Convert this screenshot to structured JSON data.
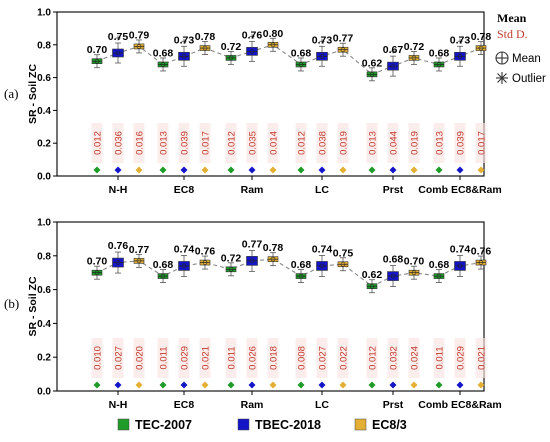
{
  "figure": {
    "legend": [
      {
        "label": "TEC-2007",
        "color": "#1f9b2a"
      },
      {
        "label": "TBEC-2018",
        "color": "#1515c8"
      },
      {
        "label": "EC8/3",
        "color": "#e3b035"
      }
    ],
    "right_legend": {
      "mean_title": "Mean",
      "std_title": "Std D.",
      "mean_symbol_label": "Mean",
      "outlier_symbol_label": "Outlier"
    }
  },
  "chart_data": [
    {
      "type": "box",
      "panel_label": "(a)",
      "ylabel": "SR - Soil ZC",
      "ylim": [
        0,
        1.0
      ],
      "yticks": [
        "0.0",
        "0.2",
        "0.4",
        "0.6",
        "0.8",
        "1.0"
      ],
      "categories": [
        "N-H",
        "EC8",
        "Ram",
        "LC",
        "Prst",
        "Comb EC8&Ram"
      ],
      "series": [
        {
          "name": "TEC-2007",
          "means": [
            0.7,
            0.68,
            0.72,
            0.68,
            0.62,
            0.68
          ],
          "mean_labels": [
            "0.70",
            "0.68",
            "0.72",
            "0.68",
            "0.62",
            "0.68"
          ],
          "std_labels": [
            "0.012",
            "0.013",
            "0.012",
            "0.012",
            "0.013",
            "0.013"
          ]
        },
        {
          "name": "TBEC-2018",
          "means": [
            0.75,
            0.73,
            0.76,
            0.73,
            0.67,
            0.73
          ],
          "mean_labels": [
            "0.75",
            "0.73",
            "0.76",
            "0.73",
            "0.67",
            "0.73"
          ],
          "std_labels": [
            "0.036",
            "0.039",
            "0.035",
            "0.038",
            "0.044",
            "0.039"
          ]
        },
        {
          "name": "EC8/3",
          "means": [
            0.79,
            0.78,
            0.8,
            0.77,
            0.72,
            0.78
          ],
          "mean_labels": [
            "0.79",
            "0.78",
            "0.80",
            "0.77",
            "0.72",
            "0.78"
          ],
          "std_labels": [
            "0.016",
            "0.017",
            "0.014",
            "0.019",
            "0.019",
            "0.017"
          ]
        }
      ]
    },
    {
      "type": "box",
      "panel_label": "(b)",
      "ylabel": "SR - Soil ZC",
      "ylim": [
        0,
        1.0
      ],
      "yticks": [
        "0.0",
        "0.2",
        "0.4",
        "0.6",
        "0.8",
        "1.0"
      ],
      "categories": [
        "N-H",
        "EC8",
        "Ram",
        "LC",
        "Prst",
        "Comb EC8&Ram"
      ],
      "series": [
        {
          "name": "TEC-2007",
          "means": [
            0.7,
            0.68,
            0.72,
            0.68,
            0.62,
            0.68
          ],
          "mean_labels": [
            "0.70",
            "0.68",
            "0.72",
            "0.68",
            "0.62",
            "0.68"
          ],
          "std_labels": [
            "0.010",
            "0.011",
            "0.011",
            "0.008",
            "0.012",
            "0.011"
          ]
        },
        {
          "name": "TBEC-2018",
          "means": [
            0.76,
            0.74,
            0.77,
            0.74,
            0.68,
            0.74
          ],
          "mean_labels": [
            "0.76",
            "0.74",
            "0.77",
            "0.74",
            "0.68",
            "0.74"
          ],
          "std_labels": [
            "0.027",
            "0.029",
            "0.026",
            "0.027",
            "0.032",
            "0.029"
          ]
        },
        {
          "name": "EC8/3",
          "means": [
            0.77,
            0.76,
            0.78,
            0.75,
            0.7,
            0.76
          ],
          "mean_labels": [
            "0.77",
            "0.76",
            "0.78",
            "0.75",
            "0.70",
            "0.76"
          ],
          "std_labels": [
            "0.020",
            "0.021",
            "0.018",
            "0.022",
            "0.024",
            "0.021"
          ]
        }
      ]
    }
  ]
}
